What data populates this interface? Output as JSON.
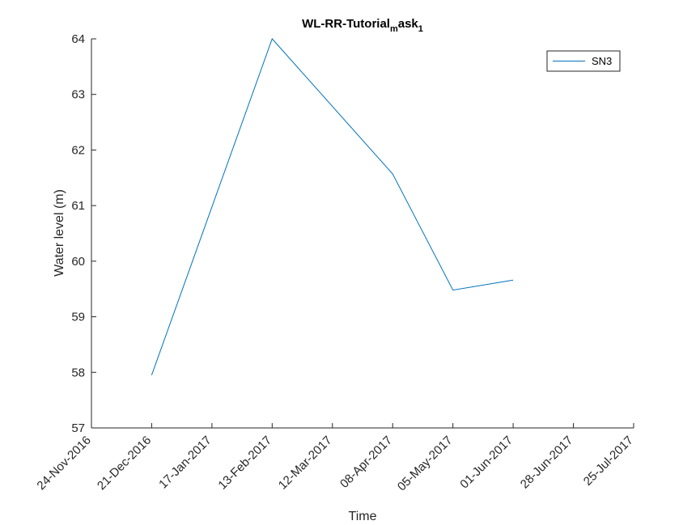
{
  "chart_data": {
    "type": "line",
    "title": {
      "main": "WL-RR-Tutorial",
      "sub1": "m",
      "mid": "ask",
      "sub2": "1"
    },
    "xlabel": "Time",
    "ylabel": "Water level (m)",
    "xlim": [
      "2016-11-24",
      "2017-07-25"
    ],
    "ylim": [
      57,
      64
    ],
    "x_ticks": [
      "24-Nov-2016",
      "21-Dec-2016",
      "17-Jan-2017",
      "13-Feb-2017",
      "12-Mar-2017",
      "08-Apr-2017",
      "05-May-2017",
      "01-Jun-2017",
      "28-Jun-2017",
      "25-Jul-2017"
    ],
    "y_ticks": [
      "57",
      "58",
      "59",
      "60",
      "61",
      "62",
      "63",
      "64"
    ],
    "grid": false,
    "legend_position": "top-right",
    "series": [
      {
        "name": "SN3",
        "color": "#0072BD",
        "x": [
          "2016-12-21",
          "2017-02-13",
          "2017-04-08",
          "2017-05-05",
          "2017-06-01"
        ],
        "y": [
          57.95,
          64.0,
          61.57,
          59.48,
          59.66
        ]
      }
    ]
  }
}
